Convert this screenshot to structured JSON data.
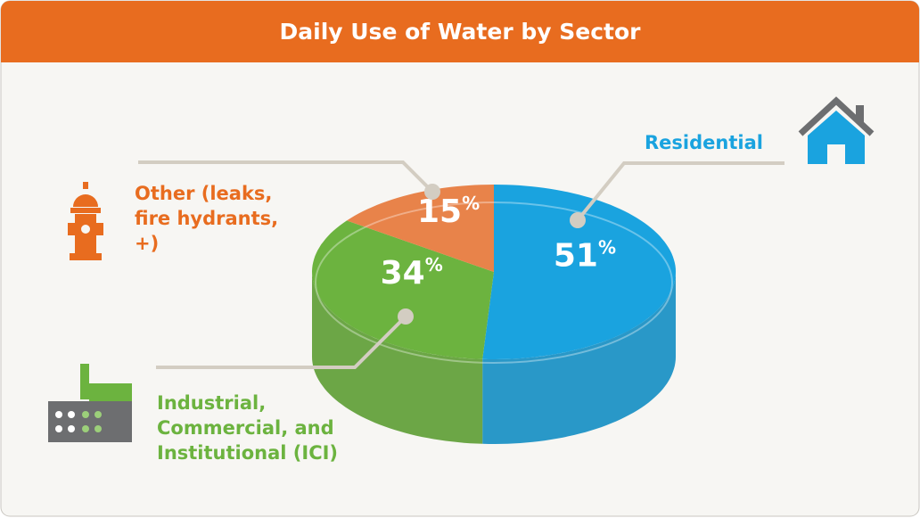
{
  "chart_data": {
    "type": "pie3d",
    "title": "Daily Use of Water by Sector",
    "categories": [
      "Residential",
      "Industrial, Commercial, and Institutional (ICI)",
      "Other (leaks, fire hydrants, +)"
    ],
    "values": [
      51,
      34,
      15
    ],
    "value_labels": [
      "51%",
      "34%",
      "15%"
    ],
    "colors": [
      "#1aa3df",
      "#6cb33f",
      "#e8834a"
    ]
  }
}
